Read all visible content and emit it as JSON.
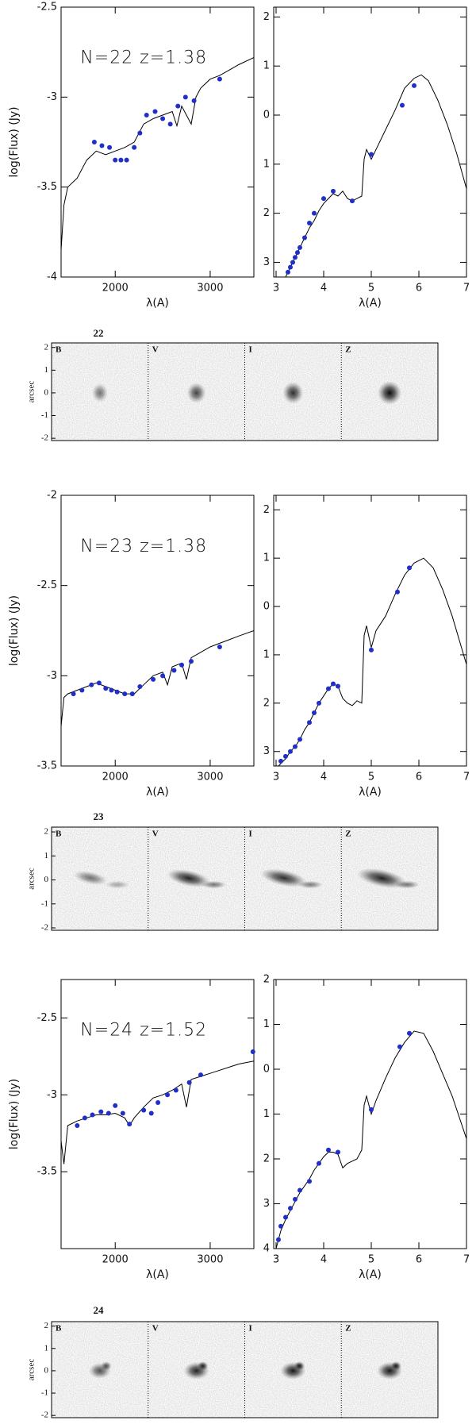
{
  "chart_data": [
    {
      "type": "line",
      "annotation": "N=22  z=1.38",
      "xlabel": "λ(A)",
      "ylabel": "log(Flux)  (Jy)",
      "xlim": [
        1430,
        3460
      ],
      "xticks": [
        2000,
        3000
      ],
      "ylim": [
        -4,
        -2.5
      ],
      "yticks": [
        -4,
        -3.5,
        -3,
        -2.5
      ],
      "series": [
        {
          "type": "line",
          "color": "#000000",
          "x": [
            1430,
            1460,
            1500,
            1600,
            1700,
            1800,
            1900,
            2000,
            2100,
            2200,
            2300,
            2400,
            2500,
            2600,
            2650,
            2700,
            2800,
            2850,
            2900,
            3000,
            3100,
            3200,
            3300,
            3460
          ],
          "values": [
            -3.85,
            -3.6,
            -3.5,
            -3.45,
            -3.35,
            -3.3,
            -3.32,
            -3.3,
            -3.28,
            -3.25,
            -3.15,
            -3.12,
            -3.1,
            -3.08,
            -3.16,
            -3.05,
            -3.15,
            -3.0,
            -2.95,
            -2.9,
            -2.88,
            -2.85,
            -2.82,
            -2.78
          ]
        },
        {
          "type": "scatter",
          "color": "#1f2fc8",
          "x": [
            1780,
            1860,
            1940,
            2000,
            2060,
            2120,
            2200,
            2260,
            2330,
            2420,
            2500,
            2580,
            2660,
            2740,
            2830,
            3100
          ],
          "values": [
            -3.25,
            -3.27,
            -3.28,
            -3.35,
            -3.35,
            -3.35,
            -3.28,
            -3.2,
            -3.1,
            -3.08,
            -3.12,
            -3.15,
            -3.05,
            -3.0,
            -3.02,
            -2.9
          ]
        }
      ]
    },
    {
      "type": "line",
      "xlabel": "λ(A)",
      "xlim": [
        2.95,
        7
      ],
      "xticks": [
        3,
        4,
        5,
        6,
        7
      ],
      "ylim": [
        -3.3,
        2.2
      ],
      "yticks": [
        {
          "value": -3,
          "label": "3"
        },
        {
          "value": -2,
          "label": "2"
        },
        {
          "value": -1,
          "label": "1"
        },
        0,
        1,
        2
      ],
      "series": [
        {
          "type": "line",
          "color": "#000000",
          "x": [
            3.2,
            3.3,
            3.4,
            3.5,
            3.6,
            3.7,
            3.8,
            3.9,
            4.0,
            4.1,
            4.2,
            4.3,
            4.4,
            4.5,
            4.6,
            4.7,
            4.8,
            4.85,
            4.9,
            5.0,
            5.1,
            5.3,
            5.5,
            5.7,
            5.9,
            6.05,
            6.2,
            6.4,
            6.6,
            6.8,
            7.0
          ],
          "values": [
            -3.3,
            -3.1,
            -2.9,
            -2.7,
            -2.5,
            -2.3,
            -2.15,
            -1.95,
            -1.8,
            -1.7,
            -1.6,
            -1.65,
            -1.55,
            -1.7,
            -1.75,
            -1.7,
            -1.65,
            -0.9,
            -0.7,
            -0.9,
            -0.7,
            -0.3,
            0.1,
            0.55,
            0.75,
            0.82,
            0.7,
            0.3,
            -0.2,
            -0.8,
            -1.5
          ]
        },
        {
          "type": "scatter",
          "color": "#1f2fc8",
          "x": [
            3.25,
            3.3,
            3.35,
            3.4,
            3.45,
            3.5,
            3.6,
            3.7,
            3.8,
            4.0,
            4.2,
            4.6,
            5.0,
            5.65,
            5.9
          ],
          "values": [
            -3.2,
            -3.1,
            -3.0,
            -2.9,
            -2.8,
            -2.7,
            -2.5,
            -2.2,
            -2.0,
            -1.7,
            -1.55,
            -1.75,
            -0.8,
            0.2,
            0.6
          ]
        }
      ]
    },
    {
      "type": "line",
      "annotation": "N=23  z=1.38",
      "xlabel": "λ(A)",
      "ylabel": "log(Flux)  (Jy)",
      "xlim": [
        1430,
        3460
      ],
      "xticks": [
        2000,
        3000
      ],
      "ylim": [
        -3.5,
        -2
      ],
      "yticks": [
        -3.5,
        -3,
        -2.5,
        -2
      ],
      "series": [
        {
          "type": "line",
          "color": "#000000",
          "x": [
            1430,
            1460,
            1500,
            1600,
            1700,
            1800,
            1900,
            2000,
            2100,
            2200,
            2300,
            2400,
            2500,
            2550,
            2600,
            2700,
            2750,
            2800,
            2900,
            3000,
            3100,
            3200,
            3300,
            3460
          ],
          "values": [
            -3.28,
            -3.12,
            -3.1,
            -3.08,
            -3.06,
            -3.04,
            -3.06,
            -3.08,
            -3.1,
            -3.1,
            -3.05,
            -3.0,
            -2.98,
            -3.05,
            -2.95,
            -2.93,
            -3.02,
            -2.9,
            -2.87,
            -2.84,
            -2.82,
            -2.8,
            -2.78,
            -2.75
          ]
        },
        {
          "type": "scatter",
          "color": "#1f2fc8",
          "x": [
            1560,
            1650,
            1750,
            1830,
            1900,
            1960,
            2020,
            2100,
            2180,
            2260,
            2400,
            2500,
            2620,
            2700,
            2800,
            3100
          ],
          "values": [
            -3.1,
            -3.08,
            -3.05,
            -3.04,
            -3.07,
            -3.08,
            -3.09,
            -3.1,
            -3.1,
            -3.06,
            -3.02,
            -3.0,
            -2.97,
            -2.94,
            -2.92,
            -2.84
          ]
        }
      ]
    },
    {
      "type": "line",
      "xlabel": "λ(A)",
      "xlim": [
        2.95,
        7
      ],
      "xticks": [
        3,
        4,
        5,
        6,
        7
      ],
      "ylim": [
        -3.3,
        2.3
      ],
      "yticks": [
        {
          "value": -3,
          "label": "3"
        },
        {
          "value": -2,
          "label": "2"
        },
        {
          "value": -1,
          "label": "1"
        },
        0,
        1,
        2
      ],
      "series": [
        {
          "type": "line",
          "color": "#000000",
          "x": [
            3.05,
            3.2,
            3.3,
            3.4,
            3.5,
            3.6,
            3.7,
            3.8,
            3.9,
            4.0,
            4.1,
            4.2,
            4.3,
            4.4,
            4.5,
            4.6,
            4.7,
            4.8,
            4.85,
            4.9,
            5.0,
            5.1,
            5.3,
            5.5,
            5.7,
            5.9,
            6.1,
            6.3,
            6.5,
            6.7,
            7.0
          ],
          "values": [
            -3.3,
            -3.15,
            -3.0,
            -2.9,
            -2.75,
            -2.55,
            -2.4,
            -2.2,
            -2.0,
            -1.85,
            -1.7,
            -1.6,
            -1.65,
            -1.9,
            -2.0,
            -2.05,
            -1.95,
            -2.0,
            -0.6,
            -0.4,
            -0.85,
            -0.5,
            -0.2,
            0.25,
            0.65,
            0.9,
            1.0,
            0.8,
            0.35,
            -0.2,
            -1.2
          ]
        },
        {
          "type": "scatter",
          "color": "#1f2fc8",
          "x": [
            3.1,
            3.2,
            3.3,
            3.4,
            3.5,
            3.7,
            3.8,
            3.9,
            4.1,
            4.2,
            4.3,
            5.0,
            5.55,
            5.8
          ],
          "values": [
            -3.2,
            -3.1,
            -3.0,
            -2.9,
            -2.75,
            -2.4,
            -2.2,
            -2.0,
            -1.7,
            -1.6,
            -1.65,
            -0.9,
            0.3,
            0.8
          ]
        }
      ]
    },
    {
      "type": "line",
      "annotation": "N=24  z=1.52",
      "xlabel": "λ(A)",
      "ylabel": "log(Flux)  (Jy)",
      "xlim": [
        1430,
        3460
      ],
      "xticks": [
        2000,
        3000
      ],
      "ylim": [
        -4,
        -2.25
      ],
      "yticks": [
        -3.5,
        -3,
        -2.5
      ],
      "series": [
        {
          "type": "line",
          "color": "#000000",
          "x": [
            1430,
            1460,
            1500,
            1600,
            1700,
            1800,
            1900,
            2000,
            2100,
            2150,
            2200,
            2300,
            2400,
            2500,
            2600,
            2700,
            2750,
            2800,
            2900,
            3000,
            3100,
            3200,
            3300,
            3460
          ],
          "values": [
            -3.3,
            -3.45,
            -3.2,
            -3.17,
            -3.15,
            -3.13,
            -3.13,
            -3.12,
            -3.15,
            -3.2,
            -3.15,
            -3.08,
            -3.02,
            -3.0,
            -2.97,
            -2.93,
            -3.08,
            -2.9,
            -2.88,
            -2.86,
            -2.84,
            -2.82,
            -2.8,
            -2.78
          ]
        },
        {
          "type": "scatter",
          "color": "#1f2fc8",
          "x": [
            1600,
            1680,
            1760,
            1850,
            1930,
            2000,
            2080,
            2150,
            2300,
            2380,
            2450,
            2550,
            2640,
            2780,
            2900,
            3450
          ],
          "values": [
            -3.2,
            -3.15,
            -3.13,
            -3.11,
            -3.12,
            -3.07,
            -3.12,
            -3.19,
            -3.1,
            -3.12,
            -3.05,
            -3.0,
            -2.97,
            -2.92,
            -2.87,
            -2.72
          ]
        }
      ]
    },
    {
      "type": "line",
      "xlabel": "λ(A)",
      "xlim": [
        2.95,
        7
      ],
      "xticks": [
        3,
        4,
        5,
        6,
        7
      ],
      "ylim": [
        -4,
        2
      ],
      "yticks": [
        {
          "value": -4,
          "label": "4"
        },
        {
          "value": -3,
          "label": "3"
        },
        {
          "value": -2,
          "label": "2"
        },
        {
          "value": -1,
          "label": "1"
        },
        0,
        1,
        2
      ],
      "series": [
        {
          "type": "line",
          "color": "#000000",
          "x": [
            3.0,
            3.1,
            3.2,
            3.3,
            3.4,
            3.5,
            3.6,
            3.7,
            3.8,
            3.9,
            4.0,
            4.1,
            4.2,
            4.3,
            4.4,
            4.5,
            4.6,
            4.7,
            4.8,
            4.85,
            4.9,
            5.0,
            5.1,
            5.3,
            5.5,
            5.7,
            5.9,
            6.1,
            6.3,
            6.5,
            6.7,
            7.0
          ],
          "values": [
            -4.0,
            -3.6,
            -3.35,
            -3.15,
            -2.95,
            -2.75,
            -2.6,
            -2.45,
            -2.25,
            -2.1,
            -1.95,
            -1.85,
            -1.85,
            -1.9,
            -2.2,
            -2.1,
            -2.05,
            -2.0,
            -1.8,
            -0.8,
            -0.6,
            -1.0,
            -0.7,
            -0.2,
            0.25,
            0.6,
            0.85,
            0.8,
            0.4,
            -0.1,
            -0.6,
            -1.55
          ]
        },
        {
          "type": "scatter",
          "color": "#1f2fc8",
          "x": [
            3.05,
            3.1,
            3.2,
            3.3,
            3.4,
            3.5,
            3.7,
            3.9,
            4.1,
            4.3,
            5.0,
            5.6,
            5.8
          ],
          "values": [
            -3.8,
            -3.5,
            -3.3,
            -3.1,
            -2.9,
            -2.7,
            -2.5,
            -2.1,
            -1.8,
            -1.85,
            -0.9,
            0.5,
            0.8
          ]
        }
      ]
    }
  ],
  "stamps": [
    {
      "label": "22",
      "ylabel": "arcsec",
      "bands": [
        "B",
        "V",
        "I",
        "Z"
      ],
      "ylim": [
        -2.1,
        2.2
      ],
      "yticks": [
        -2,
        -1,
        0,
        1,
        2
      ]
    },
    {
      "label": "23",
      "ylabel": "arcsec",
      "bands": [
        "B",
        "V",
        "I",
        "Z"
      ],
      "ylim": [
        -2.1,
        2.2
      ],
      "yticks": [
        -2,
        -1,
        0,
        1,
        2
      ]
    },
    {
      "label": "24",
      "ylabel": "arcsec",
      "bands": [
        "B",
        "V",
        "I",
        "Z"
      ],
      "ylim": [
        -2.1,
        2.2
      ],
      "yticks": [
        -2,
        -1,
        0,
        1,
        2
      ]
    }
  ]
}
